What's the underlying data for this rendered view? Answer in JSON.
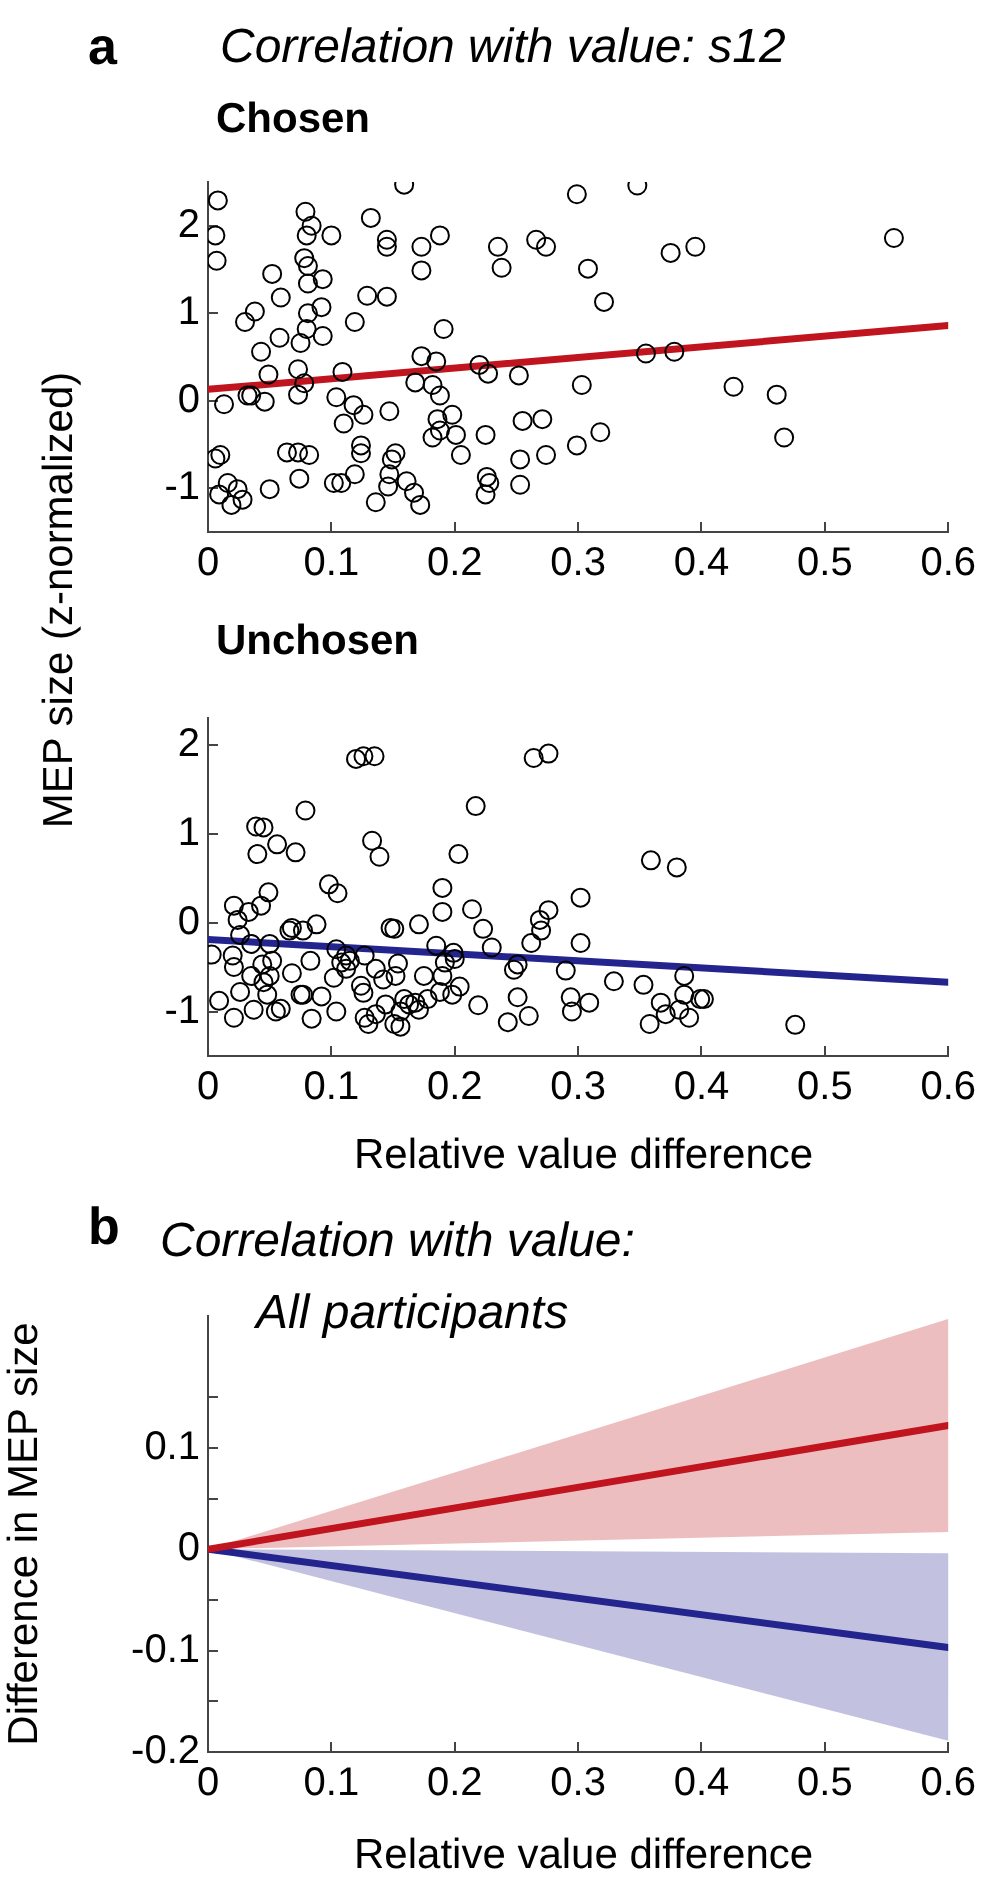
{
  "chart_data": [
    {
      "type": "scatter",
      "title": "Correlation with value: s12",
      "subtitle": "Chosen",
      "ylabel": "MEP size (z-normalized)",
      "annotations": [
        "a"
      ],
      "xlim": [
        0,
        0.6
      ],
      "xticks": [
        0,
        0.1,
        0.2,
        0.3,
        0.4,
        0.5,
        0.6
      ],
      "ylim": [
        -1.5,
        2.5
      ],
      "yticks": [
        -1,
        0,
        1,
        2
      ],
      "grid": false,
      "legend": false,
      "marker": "circle",
      "series": [
        {
          "color": "#000000",
          "x": [
            0.008,
            0.006,
            0.007,
            0.013,
            0.006,
            0.01,
            0.009,
            0.016,
            0.019,
            0.024,
            0.028,
            0.032,
            0.035,
            0.03,
            0.038,
            0.052,
            0.059,
            0.058,
            0.043,
            0.049,
            0.046,
            0.05,
            0.064,
            0.073,
            0.082,
            0.074,
            0.073,
            0.073,
            0.078,
            0.075,
            0.08,
            0.081,
            0.078,
            0.081,
            0.081,
            0.079,
            0.08,
            0.084,
            0.092,
            0.093,
            0.093,
            0.1,
            0.104,
            0.109,
            0.11,
            0.102,
            0.108,
            0.118,
            0.119,
            0.119,
            0.126,
            0.124,
            0.124,
            0.129,
            0.132,
            0.136,
            0.145,
            0.145,
            0.145,
            0.147,
            0.147,
            0.146,
            0.149,
            0.152,
            0.159,
            0.161,
            0.167,
            0.172,
            0.168,
            0.173,
            0.173,
            0.173,
            0.182,
            0.182,
            0.185,
            0.186,
            0.188,
            0.188,
            0.188,
            0.191,
            0.198,
            0.201,
            0.205,
            0.22,
            0.227,
            0.225,
            0.226,
            0.228,
            0.225,
            0.235,
            0.238,
            0.252,
            0.255,
            0.253,
            0.253,
            0.266,
            0.274,
            0.271,
            0.274,
            0.299,
            0.299,
            0.303,
            0.308,
            0.318,
            0.321,
            0.348,
            0.355,
            0.378,
            0.375,
            0.395,
            0.426,
            0.461,
            0.467,
            0.556
          ],
          "values": [
            2.29,
            1.89,
            1.6,
            -0.04,
            -0.66,
            -0.62,
            -1.07,
            -0.94,
            -1.19,
            -1.01,
            -1.13,
            0.06,
            0.06,
            0.9,
            1.02,
            1.45,
            1.18,
            0.72,
            0.56,
            0.3,
            -0.01,
            -1.01,
            -0.59,
            -0.59,
            -0.62,
            -0.89,
            0.36,
            0.07,
            0.2,
            0.66,
            0.82,
            1.0,
            1.63,
            1.54,
            1.34,
            2.16,
            1.89,
            2.0,
            1.07,
            0.74,
            1.39,
            1.89,
            0.04,
            0.33,
            -0.26,
            -0.94,
            -0.94,
            -0.05,
            0.9,
            -0.84,
            -0.16,
            -0.51,
            -0.6,
            1.2,
            2.09,
            -1.16,
            1.19,
            1.84,
            1.76,
            -0.12,
            -0.84,
            -0.98,
            -0.67,
            -0.6,
            2.47,
            -0.92,
            -1.05,
            -1.19,
            0.21,
            0.51,
            1.76,
            1.49,
            0.18,
            -0.42,
            0.45,
            -0.21,
            0.06,
            -0.34,
            1.89,
            0.82,
            -0.16,
            -0.39,
            -0.62,
            0.41,
            0.31,
            -0.39,
            -0.87,
            -0.94,
            -1.07,
            1.76,
            1.52,
            0.29,
            -0.23,
            -0.67,
            -0.96,
            1.84,
            1.76,
            -0.21,
            -0.62,
            2.36,
            -0.51,
            0.18,
            1.51,
            -0.36,
            1.13,
            2.46,
            0.54,
            0.56,
            1.69,
            1.76,
            0.16,
            0.07,
            -0.42,
            1.86
          ]
        },
        {
          "type": "line",
          "color": "#c0141e",
          "marker": "none",
          "x": [
            0,
            0.6
          ],
          "values": [
            0.13,
            0.86
          ]
        }
      ]
    },
    {
      "type": "scatter",
      "title": "Unchosen",
      "xlabel": "Relative value difference",
      "xlim": [
        0,
        0.6
      ],
      "xticks": [
        0,
        0.1,
        0.2,
        0.3,
        0.4,
        0.5,
        0.6
      ],
      "ylim": [
        -1.5,
        2.3
      ],
      "yticks": [
        -1,
        0,
        1,
        2
      ],
      "grid": false,
      "legend": false,
      "marker": "circle",
      "series": [
        {
          "color": "#000000",
          "x": [
            0.003,
            0.009,
            0.021,
            0.024,
            0.02,
            0.021,
            0.021,
            0.026,
            0.026,
            0.033,
            0.035,
            0.035,
            0.037,
            0.039,
            0.045,
            0.04,
            0.043,
            0.044,
            0.045,
            0.049,
            0.05,
            0.05,
            0.048,
            0.052,
            0.055,
            0.059,
            0.056,
            0.066,
            0.068,
            0.068,
            0.071,
            0.077,
            0.075,
            0.077,
            0.079,
            0.083,
            0.084,
            0.088,
            0.092,
            0.098,
            0.102,
            0.104,
            0.105,
            0.104,
            0.108,
            0.112,
            0.115,
            0.112,
            0.12,
            0.126,
            0.135,
            0.124,
            0.126,
            0.127,
            0.127,
            0.13,
            0.133,
            0.136,
            0.136,
            0.139,
            0.142,
            0.144,
            0.148,
            0.151,
            0.152,
            0.154,
            0.151,
            0.156,
            0.156,
            0.159,
            0.163,
            0.168,
            0.171,
            0.171,
            0.175,
            0.178,
            0.185,
            0.188,
            0.19,
            0.19,
            0.19,
            0.192,
            0.198,
            0.199,
            0.2,
            0.203,
            0.204,
            0.214,
            0.217,
            0.219,
            0.223,
            0.23,
            0.243,
            0.248,
            0.251,
            0.251,
            0.26,
            0.262,
            0.264,
            0.276,
            0.269,
            0.27,
            0.276,
            0.29,
            0.294,
            0.295,
            0.302,
            0.302,
            0.309,
            0.329,
            0.353,
            0.359,
            0.367,
            0.358,
            0.371,
            0.38,
            0.382,
            0.386,
            0.386,
            0.39,
            0.399,
            0.402,
            0.476
          ],
          "values": [
            -0.36,
            -0.88,
            0.19,
            0.03,
            -0.37,
            -0.5,
            -1.07,
            -0.14,
            -0.78,
            0.12,
            -0.24,
            -0.6,
            -0.98,
            1.08,
            1.07,
            0.77,
            0.19,
            -0.47,
            -0.67,
            0.34,
            -0.24,
            -0.6,
            -0.81,
            -0.43,
            -1.0,
            -0.97,
            0.88,
            -0.09,
            -0.06,
            -0.57,
            0.79,
            -0.09,
            -0.81,
            -0.81,
            1.26,
            -0.43,
            -1.08,
            -0.02,
            -0.83,
            0.43,
            -0.62,
            -0.3,
            0.33,
            -1.0,
            -0.45,
            -0.52,
            -0.43,
            -0.37,
            1.84,
            1.87,
            1.87,
            -0.71,
            -0.79,
            -0.37,
            -1.07,
            -1.14,
            0.92,
            -0.52,
            -1.03,
            0.74,
            -0.64,
            -0.92,
            -0.06,
            -0.07,
            -0.6,
            -0.46,
            -1.14,
            -1.17,
            -1.0,
            -0.86,
            -0.92,
            -0.9,
            -0.98,
            -0.02,
            -0.6,
            -0.86,
            -0.26,
            -0.78,
            -0.6,
            0.39,
            0.12,
            -0.45,
            -0.81,
            -0.34,
            -0.41,
            0.77,
            -0.72,
            0.15,
            1.31,
            -0.93,
            -0.07,
            -0.28,
            -1.12,
            -0.53,
            -0.47,
            -0.84,
            -1.05,
            -0.23,
            1.85,
            1.9,
            0.03,
            -0.09,
            0.14,
            -0.54,
            -0.84,
            -1.0,
            0.28,
            -0.23,
            -0.9,
            -0.66,
            -0.7,
            0.7,
            -0.9,
            -1.14,
            -1.03,
            0.62,
            -0.98,
            -0.6,
            -0.81,
            -1.07,
            -0.86,
            -0.86,
            -1.15
          ]
        },
        {
          "type": "line",
          "color": "#24248f",
          "marker": "none",
          "x": [
            0,
            0.6
          ],
          "values": [
            -0.19,
            -0.67
          ]
        }
      ]
    },
    {
      "type": "line",
      "title": "Correlation with value:",
      "subtitle": "All participants",
      "xlabel": "Relative value difference",
      "ylabel": "Difference in MEP size",
      "annotations": [
        "b"
      ],
      "xlim": [
        0,
        0.6
      ],
      "xticks": [
        0,
        0.1,
        0.2,
        0.3,
        0.4,
        0.5,
        0.6
      ],
      "ylim": [
        -0.2,
        0.23
      ],
      "yticks": [
        -0.2,
        {
          "value": -0.15,
          "label": null
        },
        -0.1,
        {
          "value": -0.05,
          "label": null
        },
        0,
        {
          "value": 0.05,
          "label": null
        },
        0.1,
        {
          "value": 0.15,
          "label": null
        }
      ],
      "grid": false,
      "legend": false,
      "marker": "none",
      "series": [
        {
          "color": "#c0141e",
          "x": [
            0,
            0.6
          ],
          "values": [
            0,
            0.122
          ],
          "lower": [
            0,
            0.017
          ],
          "upper": [
            0,
            0.227
          ]
        },
        {
          "color": "#24248f",
          "x": [
            0,
            0.6
          ],
          "values": [
            0,
            -0.097
          ],
          "lower": [
            0,
            -0.189
          ],
          "upper": [
            0,
            -0.004
          ]
        }
      ]
    }
  ]
}
